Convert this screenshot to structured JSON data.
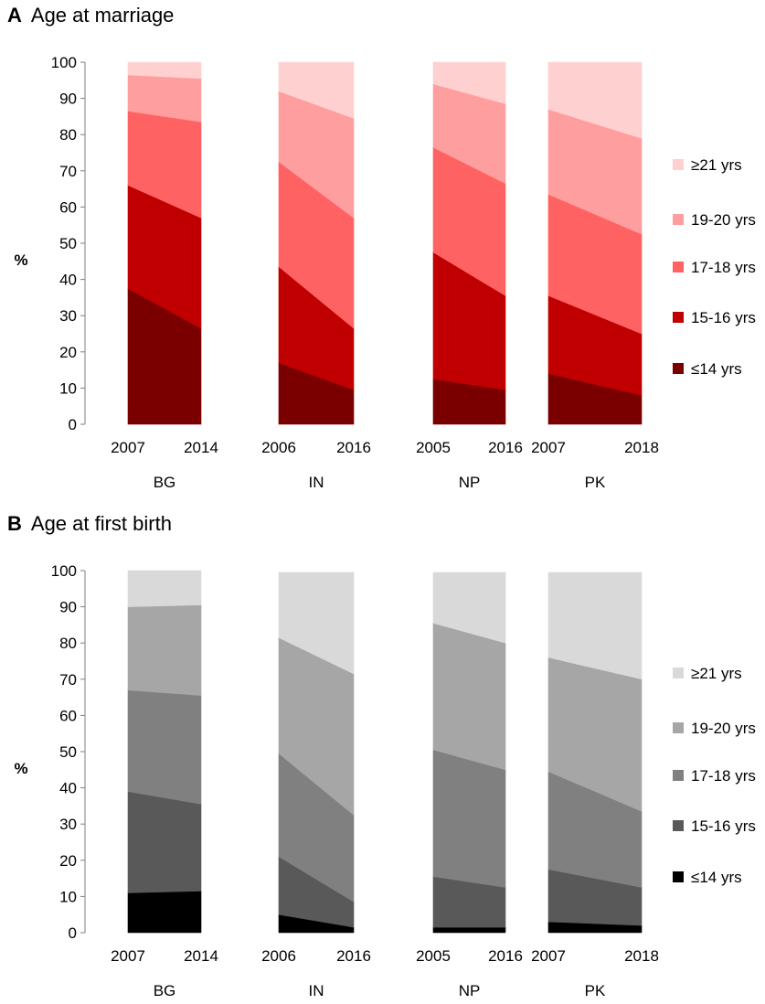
{
  "chart_data": [
    {
      "type": "area",
      "panel_label": "A",
      "title": "Age at marriage",
      "ylabel": "%",
      "ylim": [
        0,
        100
      ],
      "yticks": [
        0,
        10,
        20,
        30,
        40,
        50,
        60,
        70,
        80,
        90,
        100
      ],
      "legend_position": "right",
      "series_names": [
        "≤14 yrs",
        "15-16 yrs",
        "17-18 yrs",
        "19-20 yrs",
        "≥21 yrs"
      ],
      "colors": [
        "#7a0000",
        "#c00000",
        "#ff6262",
        "#ff9e9e",
        "#ffd0d0"
      ],
      "groups": [
        {
          "country": "BG",
          "years": [
            "2007",
            "2014"
          ],
          "values": [
            [
              37.5,
              28.5,
              20.5,
              10,
              3.5
            ],
            [
              26.5,
              30.5,
              26.5,
              12,
              4.5
            ]
          ]
        },
        {
          "country": "IN",
          "years": [
            "2006",
            "2016"
          ],
          "values": [
            [
              17,
              26.5,
              29,
              19.5,
              8
            ],
            [
              9.5,
              17,
              30.5,
              27.5,
              15.5
            ]
          ]
        },
        {
          "country": "NP",
          "years": [
            "2005",
            "2016"
          ],
          "values": [
            [
              12.5,
              35,
              29,
              17.5,
              6
            ],
            [
              9.5,
              26,
              31,
              22,
              11.5
            ]
          ]
        },
        {
          "country": "PK",
          "years": [
            "2007",
            "2018"
          ],
          "values": [
            [
              14,
              21.5,
              28,
              23.5,
              13
            ],
            [
              8,
              17,
              27.5,
              26.5,
              21
            ]
          ]
        }
      ]
    },
    {
      "type": "area",
      "panel_label": "B",
      "title": "Age at first birth",
      "ylabel": "%",
      "ylim": [
        0,
        100
      ],
      "yticks": [
        0,
        10,
        20,
        30,
        40,
        50,
        60,
        70,
        80,
        90,
        100
      ],
      "legend_position": "right",
      "series_names": [
        "≤14 yrs",
        "15-16 yrs",
        "17-18 yrs",
        "19-20 yrs",
        "≥21 yrs"
      ],
      "colors": [
        "#000000",
        "#595959",
        "#808080",
        "#a6a6a6",
        "#d9d9d9"
      ],
      "groups": [
        {
          "country": "BG",
          "years": [
            "2007",
            "2014"
          ],
          "values": [
            [
              11,
              28,
              28,
              23,
              10
            ],
            [
              11.5,
              24,
              30,
              25,
              9.5
            ]
          ]
        },
        {
          "country": "IN",
          "years": [
            "2006",
            "2016"
          ],
          "values": [
            [
              5,
              16,
              28.5,
              32,
              18
            ],
            [
              1.5,
              7,
              24,
              39,
              28
            ]
          ]
        },
        {
          "country": "NP",
          "years": [
            "2005",
            "2016"
          ],
          "values": [
            [
              1.5,
              14,
              35,
              35,
              14
            ],
            [
              1.5,
              11,
              32.5,
              35,
              19.5
            ]
          ]
        },
        {
          "country": "PK",
          "years": [
            "2007",
            "2018"
          ],
          "values": [
            [
              3,
              14.5,
              27,
              31.5,
              23.5
            ],
            [
              2,
              10.5,
              21,
              36.5,
              29.5
            ]
          ]
        }
      ]
    }
  ]
}
